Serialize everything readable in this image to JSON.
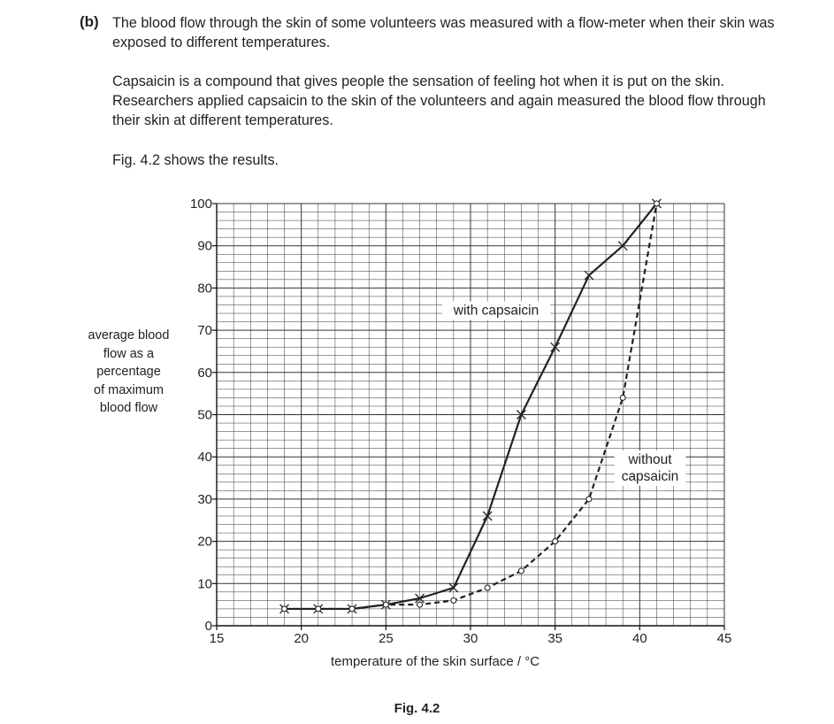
{
  "question": {
    "part": "(b)",
    "paragraphs": [
      "The blood flow through the skin of some volunteers was measured with a flow-meter when their skin was exposed to different temperatures.",
      "Capsaicin is a compound that gives people the sensation of feeling hot when it is put on the skin. Researchers applied capsaicin to the skin of the volunteers and again measured the blood flow through their skin at different temperatures.",
      "Fig. 4.2 shows the results."
    ],
    "figure_caption": "Fig. 4.2"
  },
  "chart_data": {
    "type": "line",
    "xlabel": "temperature of the skin surface / °C",
    "ylabel_lines": [
      "average blood",
      "flow as a",
      "percentage",
      "of maximum",
      "blood flow"
    ],
    "xlim": [
      15,
      45
    ],
    "ylim": [
      0,
      100
    ],
    "x_ticks": [
      15,
      20,
      25,
      30,
      35,
      40,
      45
    ],
    "y_ticks": [
      0,
      10,
      20,
      30,
      40,
      50,
      60,
      70,
      80,
      90,
      100
    ],
    "grid": true,
    "series": [
      {
        "name": "with capsaicin",
        "label_lines": [
          "with capsaicin"
        ],
        "line_style": "solid",
        "marker": "cross",
        "color": "#222222",
        "x": [
          19,
          21,
          23,
          25,
          27,
          29,
          31,
          33,
          35,
          37,
          39,
          41
        ],
        "y": [
          4,
          4,
          4,
          5,
          6.5,
          9,
          26,
          50,
          66,
          83,
          90,
          100
        ]
      },
      {
        "name": "without capsaicin",
        "label_lines": [
          "without",
          "capsaicin"
        ],
        "line_style": "dashed",
        "marker": "circle",
        "color": "#222222",
        "x": [
          19,
          21,
          23,
          25,
          27,
          29,
          31,
          33,
          35,
          37,
          39,
          41
        ],
        "y": [
          4,
          4,
          4,
          5,
          5,
          6,
          9,
          13,
          20,
          30,
          54,
          100
        ]
      }
    ]
  }
}
